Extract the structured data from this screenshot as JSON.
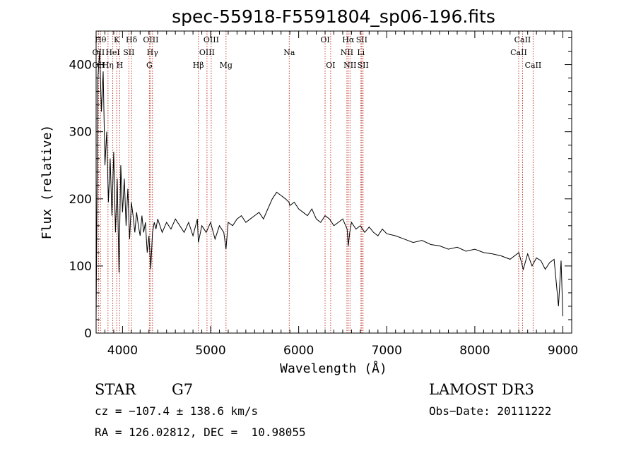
{
  "chart_data": {
    "type": "line",
    "title": "spec-55918-F5591804_sp06-196.fits",
    "xlabel": "Wavelength (Å)",
    "ylabel": "Flux (relative)",
    "xlim": [
      3700,
      9100
    ],
    "ylim": [
      0,
      450
    ],
    "xticks": [
      4000,
      5000,
      6000,
      7000,
      8000,
      9000
    ],
    "yticks": [
      0,
      100,
      200,
      300,
      400
    ],
    "series": [
      {
        "name": "flux",
        "color": "#000000",
        "x": [
          3700,
          3720,
          3740,
          3760,
          3780,
          3800,
          3820,
          3840,
          3860,
          3880,
          3900,
          3920,
          3940,
          3960,
          3980,
          4000,
          4020,
          4040,
          4060,
          4080,
          4100,
          4120,
          4140,
          4160,
          4180,
          4200,
          4220,
          4240,
          4260,
          4280,
          4300,
          4320,
          4340,
          4360,
          4380,
          4400,
          4450,
          4500,
          4550,
          4600,
          4650,
          4700,
          4750,
          4800,
          4850,
          4861,
          4900,
          4950,
          5000,
          5050,
          5100,
          5150,
          5175,
          5200,
          5250,
          5300,
          5350,
          5400,
          5450,
          5500,
          5550,
          5600,
          5650,
          5700,
          5750,
          5800,
          5850,
          5890,
          5900,
          5950,
          6000,
          6050,
          6100,
          6150,
          6200,
          6250,
          6300,
          6350,
          6400,
          6450,
          6500,
          6550,
          6563,
          6580,
          6600,
          6650,
          6700,
          6750,
          6800,
          6850,
          6900,
          6950,
          7000,
          7100,
          7200,
          7300,
          7400,
          7500,
          7600,
          7700,
          7800,
          7900,
          8000,
          8100,
          8200,
          8300,
          8400,
          8500,
          8550,
          8600,
          8650,
          8700,
          8750,
          8800,
          8850,
          8900,
          8950,
          8980,
          9000
        ],
        "y": [
          20,
          380,
          420,
          330,
          390,
          250,
          300,
          195,
          260,
          175,
          270,
          150,
          230,
          90,
          250,
          180,
          230,
          160,
          215,
          140,
          195,
          175,
          150,
          180,
          160,
          145,
          175,
          150,
          165,
          120,
          145,
          95,
          150,
          165,
          155,
          170,
          150,
          165,
          155,
          170,
          160,
          150,
          165,
          145,
          170,
          135,
          160,
          150,
          165,
          140,
          160,
          150,
          125,
          165,
          160,
          170,
          175,
          165,
          170,
          175,
          180,
          170,
          185,
          200,
          210,
          205,
          200,
          195,
          190,
          195,
          185,
          180,
          175,
          185,
          170,
          165,
          175,
          170,
          160,
          165,
          170,
          155,
          130,
          150,
          165,
          155,
          160,
          150,
          158,
          150,
          145,
          155,
          148,
          145,
          140,
          135,
          138,
          132,
          130,
          125,
          128,
          122,
          125,
          120,
          118,
          115,
          110,
          120,
          95,
          118,
          100,
          112,
          108,
          95,
          105,
          110,
          40,
          108,
          25
        ]
      }
    ],
    "lines": [
      {
        "name": "OII",
        "wl": 3727,
        "row": 2
      },
      {
        "name": "Hθ",
        "wl": 3750,
        "row": 1
      },
      {
        "name": "OII",
        "wl": 3727,
        "row": 3
      },
      {
        "name": "Hη",
        "wl": 3835,
        "row": 3
      },
      {
        "name": "HeI",
        "wl": 3889,
        "row": 2
      },
      {
        "name": "K",
        "wl": 3934,
        "row": 1
      },
      {
        "name": "H",
        "wl": 3968,
        "row": 3
      },
      {
        "name": "SII",
        "wl": 4072,
        "row": 2
      },
      {
        "name": "Hδ",
        "wl": 4102,
        "row": 1
      },
      {
        "name": "OIII",
        "wl": 4321,
        "row": 1
      },
      {
        "name": "Hγ",
        "wl": 4340,
        "row": 2
      },
      {
        "name": "G",
        "wl": 4305,
        "row": 3
      },
      {
        "name": "Hβ",
        "wl": 4861,
        "row": 3
      },
      {
        "name": "OIII",
        "wl": 4959,
        "row": 2
      },
      {
        "name": "OIII",
        "wl": 5007,
        "row": 1
      },
      {
        "name": "Mg",
        "wl": 5175,
        "row": 3
      },
      {
        "name": "Na",
        "wl": 5893,
        "row": 2
      },
      {
        "name": "OI",
        "wl": 6300,
        "row": 1
      },
      {
        "name": "OI",
        "wl": 6363,
        "row": 3
      },
      {
        "name": "NII",
        "wl": 6548,
        "row": 2
      },
      {
        "name": "Hα",
        "wl": 6563,
        "row": 1
      },
      {
        "name": "NII",
        "wl": 6583,
        "row": 3
      },
      {
        "name": "Li",
        "wl": 6707,
        "row": 2
      },
      {
        "name": "SII",
        "wl": 6716,
        "row": 1
      },
      {
        "name": "SII",
        "wl": 6731,
        "row": 3
      },
      {
        "name": "CaII",
        "wl": 8498,
        "row": 2
      },
      {
        "name": "CaII",
        "wl": 8542,
        "row": 1
      },
      {
        "name": "CaII",
        "wl": 8662,
        "row": 3
      }
    ]
  },
  "info": {
    "obj_class": "STAR",
    "subclass": "G7",
    "cz": "cz = −107.4 ± 138.6 km/s",
    "coords": "RA = 126.02812, DEC =  10.98055",
    "survey": "LAMOST DR3",
    "obs_date": "Obs−Date: 20111222"
  }
}
